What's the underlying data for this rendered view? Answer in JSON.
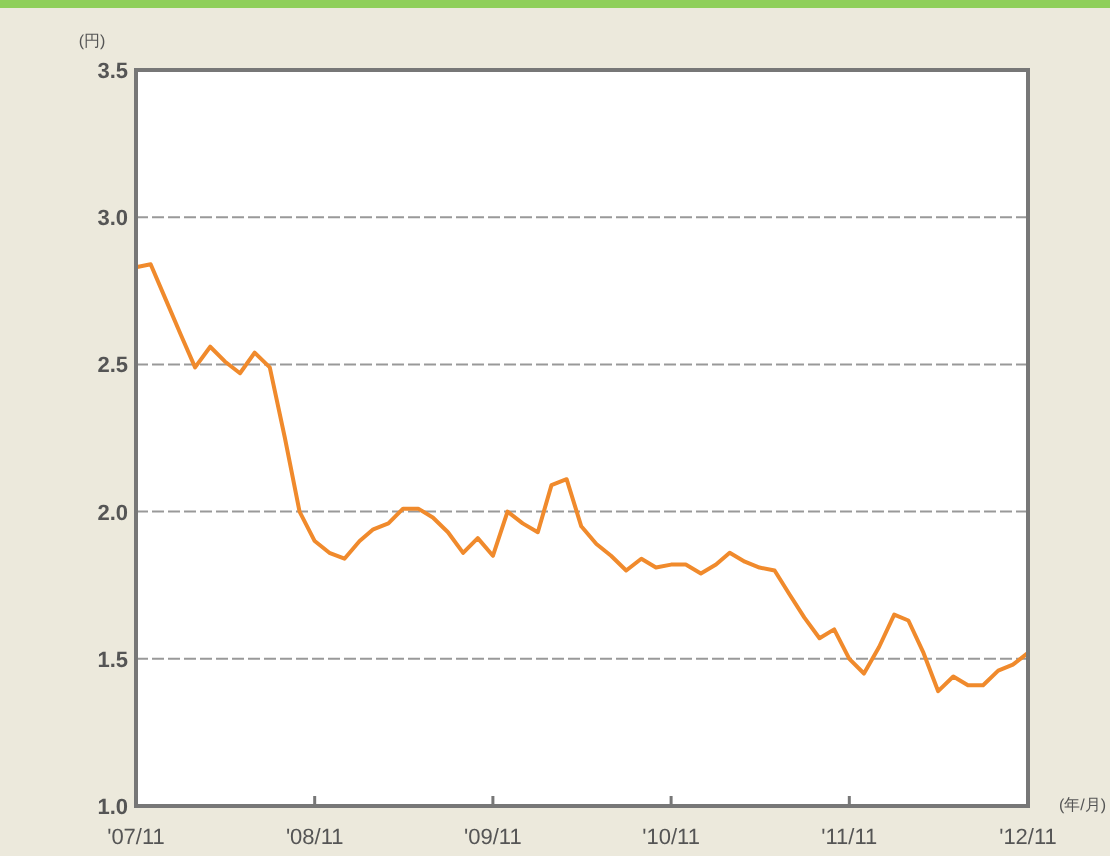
{
  "chart_data": {
    "type": "line",
    "ylabel": "(円)",
    "xlabel": "(年/月)",
    "x": [
      "2007-11",
      "2007-12",
      "2008-01",
      "2008-02",
      "2008-03",
      "2008-04",
      "2008-05",
      "2008-06",
      "2008-07",
      "2008-08",
      "2008-09",
      "2008-10",
      "2008-11",
      "2008-12",
      "2009-01",
      "2009-02",
      "2009-03",
      "2009-04",
      "2009-05",
      "2009-06",
      "2009-07",
      "2009-08",
      "2009-09",
      "2009-10",
      "2009-11",
      "2009-12",
      "2010-01",
      "2010-02",
      "2010-03",
      "2010-04",
      "2010-05",
      "2010-06",
      "2010-07",
      "2010-08",
      "2010-09",
      "2010-10",
      "2010-11",
      "2010-12",
      "2011-01",
      "2011-02",
      "2011-03",
      "2011-04",
      "2011-05",
      "2011-06",
      "2011-07",
      "2011-08",
      "2011-09",
      "2011-10",
      "2011-11",
      "2011-12",
      "2012-01",
      "2012-02",
      "2012-03",
      "2012-04",
      "2012-05",
      "2012-06",
      "2012-07",
      "2012-08",
      "2012-09",
      "2012-10",
      "2012-11"
    ],
    "series": [
      {
        "color": "#f08a2c",
        "values": [
          2.83,
          2.84,
          2.72,
          2.6,
          2.49,
          2.56,
          2.51,
          2.47,
          2.54,
          2.49,
          2.25,
          2.0,
          1.9,
          1.86,
          1.84,
          1.9,
          1.94,
          1.96,
          2.01,
          2.01,
          1.98,
          1.93,
          1.86,
          1.91,
          1.85,
          2.0,
          1.96,
          1.93,
          2.09,
          2.11,
          1.95,
          1.89,
          1.85,
          1.8,
          1.84,
          1.81,
          1.82,
          1.82,
          1.79,
          1.82,
          1.86,
          1.83,
          1.81,
          1.8,
          1.72,
          1.64,
          1.57,
          1.6,
          1.5,
          1.45,
          1.54,
          1.65,
          1.63,
          1.52,
          1.39,
          1.44,
          1.41,
          1.41,
          1.46,
          1.48,
          1.52
        ]
      }
    ],
    "xlim": [
      "2007-11",
      "2012-11"
    ],
    "xticks": [
      {
        "value": "2007-11",
        "label": "'07/11"
      },
      {
        "value": "2008-11",
        "label": "'08/11"
      },
      {
        "value": "2009-11",
        "label": "'09/11"
      },
      {
        "value": "2010-11",
        "label": "'10/11"
      },
      {
        "value": "2011-11",
        "label": "'11/11"
      },
      {
        "value": "2012-11",
        "label": "'12/11"
      }
    ],
    "ylim": [
      1.0,
      3.5
    ],
    "yticks": [
      {
        "value": 1.0,
        "label": "1.0"
      },
      {
        "value": 1.5,
        "label": "1.5"
      },
      {
        "value": 2.0,
        "label": "2.0"
      },
      {
        "value": 2.5,
        "label": "2.5"
      },
      {
        "value": 3.0,
        "label": "3.0"
      },
      {
        "value": 3.5,
        "label": "3.5"
      }
    ],
    "grid": "y",
    "marker": "none",
    "line_style": "solid"
  }
}
